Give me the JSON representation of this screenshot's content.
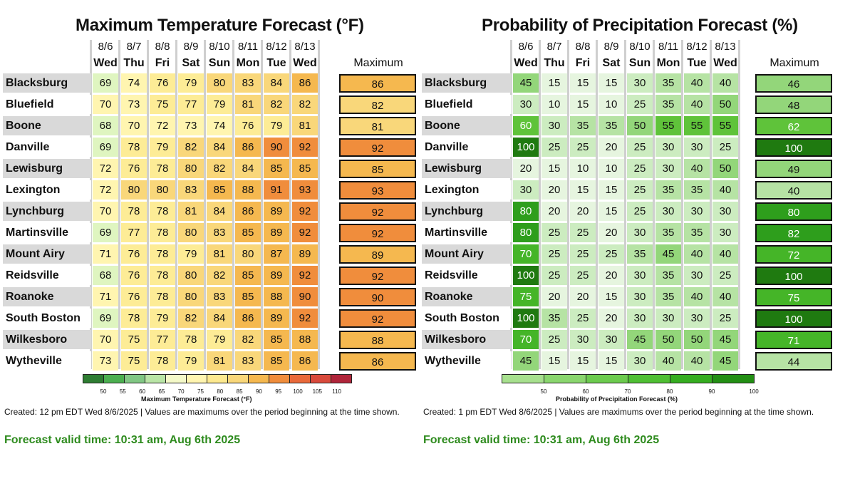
{
  "temperature": {
    "title": "Maximum Temperature Forecast (°F)",
    "dates": [
      "8/6",
      "8/7",
      "8/8",
      "8/9",
      "8/10",
      "8/11",
      "8/12",
      "8/13"
    ],
    "days": [
      "Wed",
      "Thu",
      "Fri",
      "Sat",
      "Sun",
      "Mon",
      "Tue",
      "Wed"
    ],
    "max_header": "Maximum",
    "rows": [
      {
        "city": "Blacksburg",
        "values": [
          69,
          74,
          76,
          79,
          80,
          83,
          84,
          86
        ],
        "max": "86"
      },
      {
        "city": "Bluefield",
        "values": [
          70,
          73,
          75,
          77,
          79,
          81,
          82,
          82
        ],
        "max": "82"
      },
      {
        "city": "Boone",
        "values": [
          68,
          70,
          72,
          73,
          74,
          76,
          79,
          81
        ],
        "max": "81"
      },
      {
        "city": "Danville",
        "values": [
          69,
          78,
          79,
          82,
          84,
          86,
          90,
          92
        ],
        "max": "92"
      },
      {
        "city": "Lewisburg",
        "values": [
          72,
          76,
          78,
          80,
          82,
          84,
          85,
          85
        ],
        "max": "85"
      },
      {
        "city": "Lexington",
        "values": [
          72,
          80,
          80,
          83,
          85,
          88,
          91,
          93
        ],
        "max": "93"
      },
      {
        "city": "Lynchburg",
        "values": [
          70,
          78,
          78,
          81,
          84,
          86,
          89,
          92
        ],
        "max": "92"
      },
      {
        "city": "Martinsville",
        "values": [
          69,
          77,
          78,
          80,
          83,
          85,
          89,
          92
        ],
        "max": "92"
      },
      {
        "city": "Mount Airy",
        "values": [
          71,
          76,
          78,
          79,
          81,
          80,
          87,
          89
        ],
        "max": "89"
      },
      {
        "city": "Reidsville",
        "values": [
          68,
          76,
          78,
          80,
          82,
          85,
          89,
          92
        ],
        "max": "92"
      },
      {
        "city": "Roanoke",
        "values": [
          71,
          76,
          78,
          80,
          83,
          85,
          88,
          90
        ],
        "max": "90"
      },
      {
        "city": "South Boston",
        "values": [
          69,
          78,
          79,
          82,
          84,
          86,
          89,
          92
        ],
        "max": "92"
      },
      {
        "city": "Wilkesboro",
        "values": [
          70,
          75,
          77,
          78,
          79,
          82,
          85,
          88
        ],
        "max": "88"
      },
      {
        "city": "Wytheville",
        "values": [
          73,
          75,
          78,
          79,
          81,
          83,
          85,
          86
        ],
        "max": "86"
      }
    ],
    "colorbar": {
      "ticks": [
        "50",
        "55",
        "60",
        "65",
        "70",
        "75",
        "80",
        "85",
        "90",
        "95",
        "100",
        "105",
        "110"
      ],
      "label": "Maximum Temperature Forecast (°F)"
    },
    "created": "Created: 12 pm EDT Wed 8/6/2025  |  Values are maximums over the period beginning at the time shown.",
    "valid": "Forecast valid time: 10:31 am, Aug 6th 2025"
  },
  "precipitation": {
    "title": "Probability of Precipitation Forecast (%)",
    "dates": [
      "8/6",
      "8/7",
      "8/8",
      "8/9",
      "8/10",
      "8/11",
      "8/12",
      "8/13"
    ],
    "days": [
      "Wed",
      "Thu",
      "Fri",
      "Sat",
      "Sun",
      "Mon",
      "Tue",
      "Wed"
    ],
    "max_header": "Maximum",
    "rows": [
      {
        "city": "Blacksburg",
        "values": [
          45,
          15,
          15,
          15,
          30,
          35,
          40,
          40
        ],
        "max": "46"
      },
      {
        "city": "Bluefield",
        "values": [
          30,
          10,
          15,
          10,
          25,
          35,
          40,
          50
        ],
        "max": "48"
      },
      {
        "city": "Boone",
        "values": [
          60,
          30,
          35,
          35,
          50,
          55,
          55,
          55
        ],
        "max": "62"
      },
      {
        "city": "Danville",
        "values": [
          100,
          25,
          25,
          20,
          25,
          30,
          30,
          25
        ],
        "max": "100"
      },
      {
        "city": "Lewisburg",
        "values": [
          20,
          15,
          10,
          10,
          25,
          30,
          40,
          50
        ],
        "max": "49"
      },
      {
        "city": "Lexington",
        "values": [
          30,
          20,
          15,
          15,
          25,
          35,
          35,
          40
        ],
        "max": "40"
      },
      {
        "city": "Lynchburg",
        "values": [
          80,
          20,
          20,
          15,
          25,
          30,
          30,
          30
        ],
        "max": "80"
      },
      {
        "city": "Martinsville",
        "values": [
          80,
          25,
          25,
          20,
          30,
          35,
          35,
          30
        ],
        "max": "82"
      },
      {
        "city": "Mount Airy",
        "values": [
          70,
          25,
          25,
          25,
          35,
          45,
          40,
          40
        ],
        "max": "72"
      },
      {
        "city": "Reidsville",
        "values": [
          100,
          25,
          25,
          20,
          30,
          35,
          30,
          25
        ],
        "max": "100"
      },
      {
        "city": "Roanoke",
        "values": [
          75,
          20,
          20,
          15,
          30,
          35,
          40,
          40
        ],
        "max": "75"
      },
      {
        "city": "South Boston",
        "values": [
          100,
          35,
          25,
          20,
          30,
          30,
          30,
          25
        ],
        "max": "100"
      },
      {
        "city": "Wilkesboro",
        "values": [
          70,
          25,
          30,
          30,
          45,
          50,
          50,
          45
        ],
        "max": "71"
      },
      {
        "city": "Wytheville",
        "values": [
          45,
          15,
          15,
          15,
          30,
          40,
          40,
          45
        ],
        "max": "44"
      }
    ],
    "colorbar": {
      "ticks": [
        "50",
        "60",
        "70",
        "80",
        "90",
        "100"
      ],
      "label": "Probability of Precipitation Forecast (%)"
    },
    "created": "Created: 1 pm EDT Wed 8/6/2025  |  Values are maximums over the period beginning at the time shown.",
    "valid": "Forecast valid time: 10:31 am, Aug 6th 2025"
  },
  "chart_data": [
    {
      "type": "heatmap",
      "title": "Maximum Temperature Forecast (°F)",
      "x": [
        "8/6 Wed",
        "8/7 Thu",
        "8/8 Fri",
        "8/9 Sat",
        "8/10 Sun",
        "8/11 Mon",
        "8/12 Tue",
        "8/13 Wed"
      ],
      "y": [
        "Blacksburg",
        "Bluefield",
        "Boone",
        "Danville",
        "Lewisburg",
        "Lexington",
        "Lynchburg",
        "Martinsville",
        "Mount Airy",
        "Reidsville",
        "Roanoke",
        "South Boston",
        "Wilkesboro",
        "Wytheville"
      ],
      "zlim": [
        45,
        110
      ]
    },
    {
      "type": "heatmap",
      "title": "Probability of Precipitation Forecast (%)",
      "x": [
        "8/6 Wed",
        "8/7 Thu",
        "8/8 Fri",
        "8/9 Sat",
        "8/10 Sun",
        "8/11 Mon",
        "8/12 Tue",
        "8/13 Wed"
      ],
      "y": [
        "Blacksburg",
        "Bluefield",
        "Boone",
        "Danville",
        "Lewisburg",
        "Lexington",
        "Lynchburg",
        "Martinsville",
        "Mount Airy",
        "Reidsville",
        "Roanoke",
        "South Boston",
        "Wilkesboro",
        "Wytheville"
      ],
      "zlim": [
        40,
        100
      ]
    }
  ]
}
